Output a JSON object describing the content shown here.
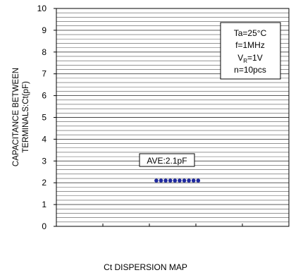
{
  "chart_data": {
    "type": "scatter",
    "ylabel_line1": "CAPACITANCE BETWEEN",
    "ylabel_line2": "TERMINALS:Ct(pF)",
    "ylim": [
      0,
      10
    ],
    "yticks": [
      "0",
      "1",
      "2",
      "3",
      "4",
      "5",
      "6",
      "7",
      "8",
      "9",
      "10"
    ],
    "minor_grid_step": 0.2,
    "grid": true,
    "xlim": [
      0,
      5
    ],
    "points": [
      {
        "x": 2.15,
        "y": 2.1
      },
      {
        "x": 2.25,
        "y": 2.1
      },
      {
        "x": 2.35,
        "y": 2.1
      },
      {
        "x": 2.45,
        "y": 2.1
      },
      {
        "x": 2.55,
        "y": 2.1
      },
      {
        "x": 2.65,
        "y": 2.1
      },
      {
        "x": 2.75,
        "y": 2.1
      },
      {
        "x": 2.85,
        "y": 2.1
      },
      {
        "x": 2.95,
        "y": 2.1
      },
      {
        "x": 3.05,
        "y": 2.1
      }
    ],
    "point_color": "#1f2aa0",
    "annotation": "AVE:2.1pF",
    "conditions": {
      "ta": "Ta=25°C",
      "f": "f=1MHz",
      "vr_main": "V",
      "vr_sub": "R",
      "vr_value": "=1V",
      "n": "n=10pcs"
    },
    "caption": "Ct DISPERSION MAP"
  }
}
